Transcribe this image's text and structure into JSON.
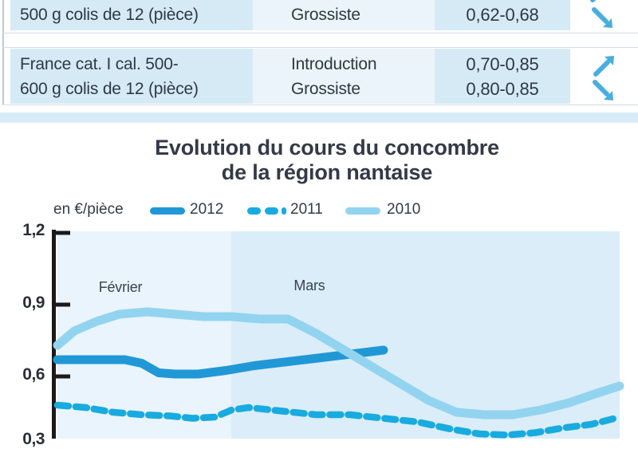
{
  "table": {
    "rows": [
      {
        "product": [
          "",
          "500 g colis de 12 (pièce)"
        ],
        "stages": [
          "",
          "Grossiste"
        ],
        "prices": [
          "",
          "0,62-0,68"
        ],
        "trends": [
          "up",
          "down"
        ]
      },
      {
        "product": [
          "France cat. I cal. 500-",
          "600 g colis de 12 (pièce)"
        ],
        "stages": [
          "Introduction",
          "Grossiste"
        ],
        "prices": [
          "0,70-0,85",
          "0,80-0,85"
        ],
        "trends": [
          "up",
          "down"
        ]
      }
    ],
    "trend_arrow_color": "#49aede"
  },
  "chart": {
    "title_line1": "Evolution du cours du concombre",
    "title_line2": "de la région nantaise",
    "unit_label": "en €/pièce",
    "ytick_labels": [
      "1,2",
      "0,9",
      "0,6",
      "0,3"
    ],
    "month_labels": [
      "Février",
      "Mars"
    ],
    "band_colors": {
      "fevrier": "#e9f4fc",
      "mars": "#dbedf9"
    },
    "axis_color": "#1a1a1a"
  },
  "chart_data": {
    "type": "line",
    "title": "Evolution du cours du concombre de la région nantaise",
    "ylabel": "en €/pièce",
    "xlabel": "Février – Mars",
    "ylim": [
      0.3,
      1.2
    ],
    "yticks": [
      1.2,
      0.9,
      0.6,
      0.3
    ],
    "grid": false,
    "legend_position": "top",
    "bands": [
      {
        "label": "Février",
        "from": 0.0,
        "to": 0.31
      },
      {
        "label": "Mars",
        "from": 0.31,
        "to": 1.0
      }
    ],
    "series": [
      {
        "name": "2012",
        "color": "#2098d6",
        "style": "solid",
        "width": 11,
        "x": [
          0,
          0.12,
          0.15,
          0.18,
          0.21,
          0.25,
          0.3,
          0.35,
          0.44,
          0.51,
          0.58
        ],
        "values": [
          0.67,
          0.67,
          0.655,
          0.615,
          0.61,
          0.61,
          0.625,
          0.645,
          0.67,
          0.69,
          0.71
        ]
      },
      {
        "name": "2011",
        "color": "#18abdf",
        "style": "dashed",
        "width": 8.5,
        "dash": "14 9",
        "x": [
          0,
          0.05,
          0.1,
          0.15,
          0.2,
          0.24,
          0.28,
          0.31,
          0.34,
          0.4,
          0.46,
          0.52,
          0.58,
          0.64,
          0.7,
          0.75,
          0.8,
          0.85,
          0.9,
          0.95,
          1.0
        ],
        "values": [
          0.48,
          0.47,
          0.45,
          0.44,
          0.435,
          0.425,
          0.43,
          0.46,
          0.47,
          0.455,
          0.44,
          0.44,
          0.425,
          0.41,
          0.38,
          0.36,
          0.355,
          0.365,
          0.385,
          0.4,
          0.43
        ]
      },
      {
        "name": "2010",
        "color": "#92d4f0",
        "style": "solid",
        "width": 11,
        "x": [
          0,
          0.03,
          0.07,
          0.11,
          0.16,
          0.21,
          0.26,
          0.31,
          0.36,
          0.41,
          0.46,
          0.51,
          0.56,
          0.61,
          0.66,
          0.71,
          0.76,
          0.81,
          0.86,
          0.91,
          0.96,
          1.0
        ],
        "values": [
          0.73,
          0.79,
          0.83,
          0.86,
          0.87,
          0.86,
          0.85,
          0.85,
          0.84,
          0.84,
          0.78,
          0.71,
          0.64,
          0.57,
          0.5,
          0.45,
          0.44,
          0.44,
          0.46,
          0.49,
          0.53,
          0.56
        ]
      }
    ]
  }
}
